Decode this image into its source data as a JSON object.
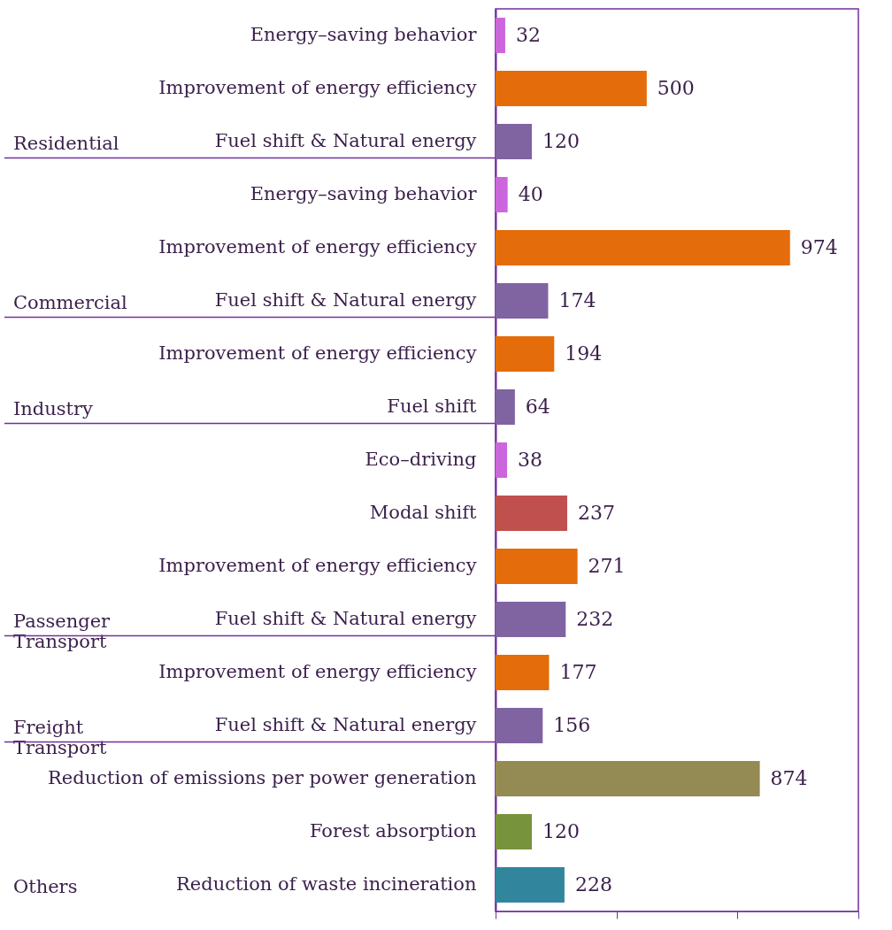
{
  "chart_data": {
    "type": "bar",
    "orientation": "horizontal",
    "categories": [
      "Energy–saving behavior",
      "Improvement of energy efficiency",
      "Fuel shift & Natural energy",
      "Energy–saving behavior",
      "Improvement of energy efficiency",
      "Fuel shift & Natural energy",
      "Improvement of energy efficiency",
      "Fuel shift",
      "Eco–driving",
      "Modal shift",
      "Improvement of energy efficiency",
      "Fuel shift & Natural energy",
      "Improvement of energy efficiency",
      "Fuel shift & Natural energy",
      "Reduction of emissions per power generation",
      "Forest absorption",
      "Reduction of waste incineration"
    ],
    "values": [
      32,
      500,
      120,
      40,
      974,
      174,
      194,
      64,
      38,
      237,
      271,
      232,
      177,
      156,
      874,
      120,
      228
    ],
    "colors": [
      "#cc66dd",
      "#e46c0a",
      "#8064a2",
      "#cc66dd",
      "#e46c0a",
      "#8064a2",
      "#e46c0a",
      "#8064a2",
      "#cc66dd",
      "#c0504d",
      "#e46c0a",
      "#8064a2",
      "#e46c0a",
      "#8064a2",
      "#948a54",
      "#77933c",
      "#31859c"
    ],
    "xlim": [
      0,
      1200
    ],
    "xticks": [
      {
        "value": 0,
        "label": null
      },
      {
        "value": 400,
        "label": null
      },
      {
        "value": 800,
        "label": null
      },
      {
        "value": 1200,
        "label": null
      }
    ],
    "tick_labels": "y",
    "data_labels": true,
    "grid": false,
    "annotations": [
      "Residential",
      "Commercial",
      "Industry",
      "Passenger Transport",
      "Freight Transport",
      "Others"
    ]
  }
}
